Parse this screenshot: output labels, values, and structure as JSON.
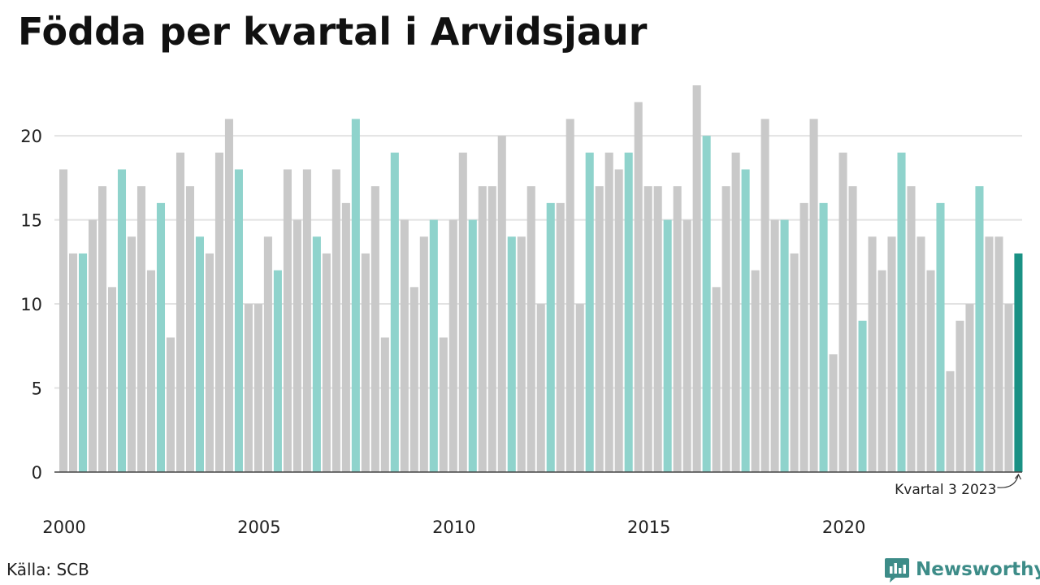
{
  "chart_data": {
    "type": "bar",
    "title": "Födda per kvartal i Arvidsjaur",
    "xlabel": "",
    "ylabel": "",
    "ylim": [
      0,
      23
    ],
    "y_ticks": [
      0,
      5,
      10,
      15,
      20
    ],
    "x_tick_labels": [
      "2000",
      "2005",
      "2010",
      "2015",
      "2020"
    ],
    "grid": "horizontal",
    "start_year": 2000,
    "highlighted_quarter": 3,
    "values": [
      18,
      13,
      13,
      15,
      17,
      11,
      18,
      14,
      17,
      12,
      16,
      8,
      19,
      17,
      14,
      13,
      19,
      21,
      18,
      10,
      10,
      14,
      12,
      18,
      15,
      18,
      14,
      13,
      18,
      16,
      21,
      13,
      17,
      8,
      19,
      15,
      11,
      14,
      15,
      8,
      15,
      19,
      15,
      17,
      17,
      20,
      14,
      14,
      17,
      10,
      16,
      16,
      21,
      10,
      19,
      17,
      19,
      18,
      19,
      22,
      17,
      17,
      15,
      17,
      15,
      23,
      20,
      11,
      17,
      19,
      18,
      12,
      21,
      15,
      15,
      13,
      16,
      21,
      16,
      7,
      19,
      17,
      9,
      14,
      12,
      14,
      19,
      17,
      14,
      12,
      16,
      6,
      9,
      10,
      17,
      14,
      14,
      10,
      13
    ],
    "annotation": "Kvartal 3 2023",
    "colors": {
      "default": "#c9c9c9",
      "quarter_highlight": "#8fd3cc",
      "latest": "#1a9184",
      "grid": "#e2e2e2",
      "axis": "#444444"
    }
  },
  "source": "Källa: SCB",
  "brand": {
    "name": "Newsworthy",
    "icon": "newsworthy-logo-icon",
    "color": "#3d8c88"
  }
}
